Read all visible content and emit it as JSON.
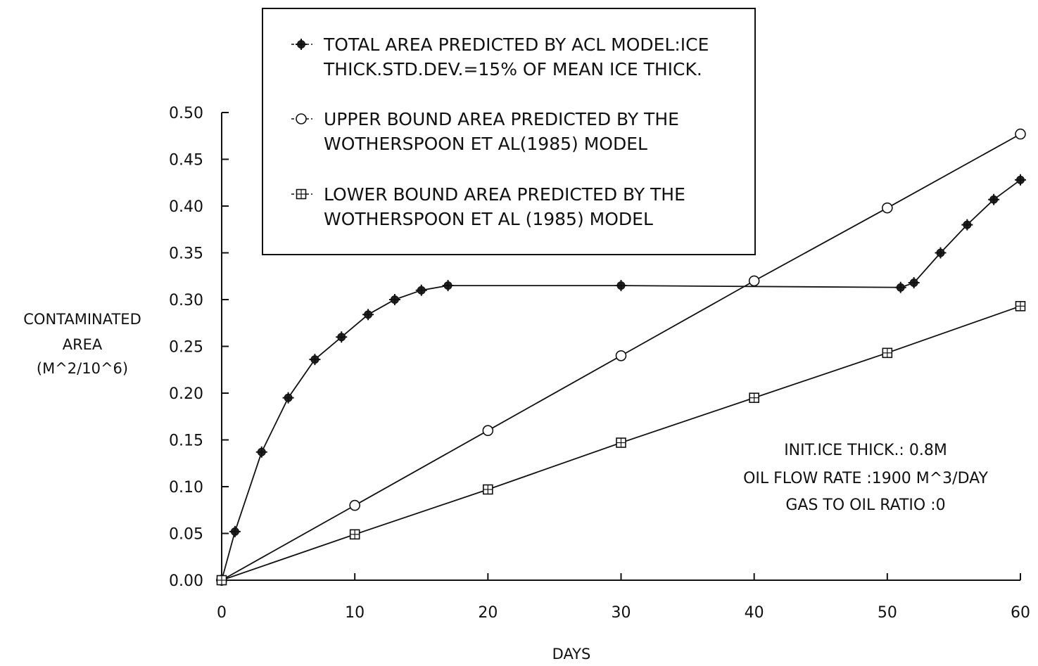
{
  "chart_data": {
    "type": "line",
    "xlabel": "DAYS",
    "ylabel_lines": [
      "CONTAMINATED",
      "AREA",
      "(M^2/10^6)"
    ],
    "xlim": [
      0,
      60
    ],
    "ylim": [
      0,
      0.5
    ],
    "x_ticks": [
      "0",
      "10",
      "20",
      "30",
      "40",
      "50",
      "60"
    ],
    "y_ticks": [
      "0.00",
      "0.05",
      "0.10",
      "0.15",
      "0.20",
      "0.25",
      "0.30",
      "0.35",
      "0.40",
      "0.45",
      "0.50"
    ],
    "legend_placement": "top-center",
    "series": [
      {
        "legend_lines": [
          "TOTAL AREA PREDICTED BY ACL MODEL:ICE",
          "THICK.STD.DEV.=15% OF MEAN ICE THICK."
        ],
        "marker": "plus-circle",
        "x": [
          0,
          1,
          3,
          5,
          7,
          9,
          11,
          13,
          15,
          17,
          30,
          51,
          52,
          54,
          56,
          58,
          60
        ],
        "y": [
          0.0,
          0.052,
          0.137,
          0.195,
          0.236,
          0.26,
          0.284,
          0.3,
          0.31,
          0.315,
          0.315,
          0.313,
          0.318,
          0.35,
          0.38,
          0.407,
          0.428
        ]
      },
      {
        "legend_lines": [
          "UPPER BOUND AREA PREDICTED BY THE",
          "WOTHERSPOON ET AL(1985) MODEL"
        ],
        "marker": "diamond",
        "x": [
          0,
          10,
          20,
          30,
          40,
          50,
          60
        ],
        "y": [
          0.0,
          0.08,
          0.16,
          0.24,
          0.32,
          0.398,
          0.477
        ]
      },
      {
        "legend_lines": [
          "LOWER BOUND AREA PREDICTED BY THE",
          "WOTHERSPOON ET AL (1985) MODEL"
        ],
        "marker": "square",
        "x": [
          0,
          10,
          20,
          30,
          40,
          50,
          60
        ],
        "y": [
          0.0,
          0.049,
          0.097,
          0.147,
          0.195,
          0.243,
          0.293
        ]
      }
    ],
    "annotation_lines": [
      "INIT.ICE THICK.: 0.8M",
      "OIL FLOW RATE :1900 M^3/DAY",
      "GAS TO OIL RATIO :0"
    ]
  }
}
